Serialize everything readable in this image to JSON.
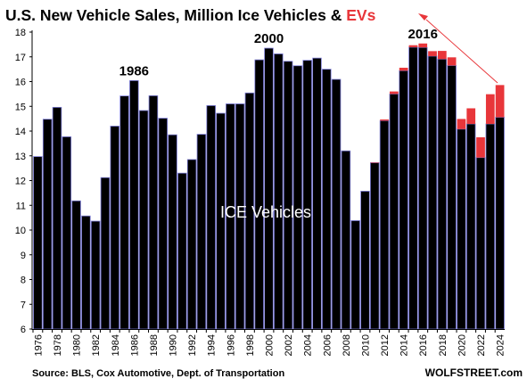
{
  "chart_data": {
    "type": "bar",
    "title_main": "U.S. New Vehicle Sales, Million Ice Vehicles & ",
    "title_highlight": "EVs",
    "ylim": [
      6,
      18
    ],
    "yticks": [
      6,
      7,
      8,
      9,
      10,
      11,
      12,
      13,
      14,
      15,
      16,
      17,
      18
    ],
    "categories": [
      "1976",
      "1977",
      "1978",
      "1979",
      "1980",
      "1981",
      "1982",
      "1983",
      "1984",
      "1985",
      "1986",
      "1987",
      "1988",
      "1989",
      "1990",
      "1991",
      "1992",
      "1993",
      "1994",
      "1995",
      "1996",
      "1997",
      "1998",
      "1999",
      "2000",
      "2001",
      "2002",
      "2003",
      "2004",
      "2005",
      "2006",
      "2007",
      "2008",
      "2009",
      "2010",
      "2011",
      "2012",
      "2013",
      "2014",
      "2015",
      "2016",
      "2017",
      "2018",
      "2019",
      "2020",
      "2021",
      "2022",
      "2023",
      "2024"
    ],
    "xtick_labels": [
      "1976",
      "1978",
      "1980",
      "1982",
      "1984",
      "1986",
      "1988",
      "1990",
      "1992",
      "1994",
      "1996",
      "1998",
      "2000",
      "2002",
      "2004",
      "2006",
      "2008",
      "2010",
      "2012",
      "2014",
      "2016",
      "2018",
      "2020",
      "2022",
      "2024"
    ],
    "series": [
      {
        "name": "ICE Vehicles",
        "color": "#000000",
        "values": [
          12.97,
          14.48,
          14.96,
          13.77,
          11.18,
          10.57,
          10.36,
          12.12,
          14.2,
          15.42,
          16.04,
          14.83,
          15.43,
          14.52,
          13.85,
          12.3,
          12.85,
          13.87,
          15.03,
          14.72,
          15.1,
          15.1,
          15.54,
          16.88,
          17.35,
          17.12,
          16.82,
          16.64,
          16.86,
          16.95,
          16.5,
          16.09,
          13.2,
          10.38,
          11.57,
          12.72,
          14.42,
          15.5,
          16.44,
          17.39,
          17.38,
          17.03,
          16.91,
          16.65,
          14.08,
          14.29,
          12.93,
          14.29,
          14.56
        ]
      },
      {
        "name": "EVs",
        "color": "#e8363a",
        "values": [
          0,
          0,
          0,
          0,
          0,
          0,
          0,
          0,
          0,
          0,
          0,
          0,
          0,
          0,
          0,
          0,
          0,
          0,
          0,
          0,
          0,
          0,
          0,
          0,
          0,
          0,
          0,
          0,
          0,
          0,
          0,
          0,
          0,
          0,
          0,
          0.02,
          0.05,
          0.1,
          0.12,
          0.08,
          0.16,
          0.2,
          0.33,
          0.33,
          0.41,
          0.63,
          0.82,
          1.2,
          1.3
        ]
      }
    ],
    "annotations": [
      {
        "text": "1986",
        "year": "1986"
      },
      {
        "text": "2000",
        "year": "2000"
      },
      {
        "text": "2016",
        "year": "2016"
      }
    ],
    "center_label": "ICE Vehicles",
    "footer_source": "Source: BLS, Cox Automotive, Dept. of Transportation",
    "footer_brand": "WOLFSTREET.com",
    "colors": {
      "ice_fill": "#000000",
      "ice_outline": "#7b7bd6",
      "ev_fill": "#e8363a",
      "title": "#000000",
      "highlight": "#e8363a",
      "axis": "#000000",
      "background": "#ffffff"
    }
  }
}
